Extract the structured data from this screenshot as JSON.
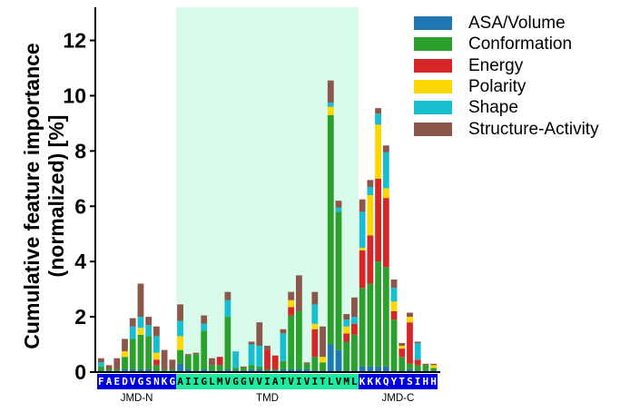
{
  "chart_data": {
    "type": "bar",
    "stacked": true,
    "ylabel": "Cumulative feature importance\n(normalized) [%]",
    "ylim": [
      0,
      13.2
    ],
    "yticks": [
      0,
      2,
      4,
      6,
      8,
      10,
      12
    ],
    "legend_position": "top-right, outside plot",
    "tmd_highlight_color": "#d9fbeb",
    "categories": [
      "F",
      "A",
      "E",
      "D",
      "V",
      "G",
      "S",
      "N",
      "K",
      "G",
      "A",
      "I",
      "I",
      "G",
      "L",
      "M",
      "V",
      "G",
      "G",
      "V",
      "V",
      "I",
      "A",
      "T",
      "V",
      "I",
      "V",
      "I",
      "T",
      "L",
      "V",
      "M",
      "L",
      "K",
      "K",
      "K",
      "Q",
      "Y",
      "T",
      "S",
      "I",
      "H",
      "H"
    ],
    "regions": [
      {
        "label": "JMD-N",
        "start": 0,
        "end": 9,
        "letters": "FAEDVGSNKG",
        "bg": "#0000dd",
        "fg": "#ffffff"
      },
      {
        "label": "TMD",
        "start": 10,
        "end": 32,
        "letters": "AIIGLMVGGVVIATVIVITLVML",
        "bg": "#1de9a0",
        "fg": "#000000"
      },
      {
        "label": "JMD-C",
        "start": 33,
        "end": 42,
        "letters": "KKKQYTSIHH",
        "bg": "#0000dd",
        "fg": "#ffffff"
      }
    ],
    "series": [
      {
        "name": "ASA/Volume",
        "color": "#1f77b4",
        "values": [
          0.05,
          0.05,
          0.05,
          0.1,
          0.1,
          0.1,
          0.1,
          0.05,
          0.05,
          0.05,
          0.3,
          0.1,
          0.05,
          0.1,
          0.05,
          0.05,
          0.1,
          0.05,
          0.05,
          0.1,
          0.1,
          0.05,
          0.05,
          0.1,
          0.1,
          0.1,
          0.1,
          0.05,
          0.05,
          1.0,
          0.8,
          0.05,
          0.05,
          0.2,
          0.2,
          0.2,
          0.2,
          0.05,
          0.05,
          0.1,
          0.05,
          0.05,
          0.05
        ]
      },
      {
        "name": "Conformation",
        "color": "#2ca02c",
        "values": [
          0.15,
          0.05,
          0.05,
          0.45,
          1.1,
          1.25,
          1.2,
          0.2,
          0.05,
          0.05,
          0.5,
          0.5,
          0.6,
          1.4,
          0.2,
          0.2,
          1.9,
          0.1,
          0.1,
          0.15,
          0.1,
          0.05,
          0.05,
          0.3,
          1.95,
          2.1,
          0.2,
          0.5,
          0.3,
          8.3,
          5.0,
          1.05,
          1.3,
          2.85,
          3.0,
          3.8,
          3.6,
          1.85,
          0.5,
          0.2,
          0.2,
          0.2,
          0.1
        ]
      },
      {
        "name": "Energy",
        "color": "#d62728",
        "values": [
          0,
          0,
          0,
          0,
          0,
          0,
          0,
          0.2,
          0,
          0,
          0,
          0,
          0,
          0,
          0,
          0.3,
          0,
          0,
          0,
          0,
          0,
          0.7,
          0.5,
          0,
          0.3,
          0,
          0,
          1.0,
          0,
          0,
          0,
          0.3,
          0.4,
          1.35,
          1.75,
          3.0,
          2.5,
          0.3,
          0.3,
          1.5,
          0.2,
          0,
          0
        ]
      },
      {
        "name": "Polarity",
        "color": "#ffd700",
        "values": [
          0,
          0,
          0,
          0.2,
          0,
          0.25,
          0,
          0.25,
          0,
          0,
          0.5,
          0,
          0,
          0,
          0,
          0,
          0,
          0,
          0,
          0,
          0,
          0,
          0,
          0,
          0.25,
          0,
          0,
          0.2,
          0.2,
          0.3,
          0,
          0.25,
          0,
          0.1,
          1.45,
          1.95,
          0.35,
          0.35,
          0.1,
          0.2,
          0,
          0,
          0.1
        ]
      },
      {
        "name": "Shape",
        "color": "#17becf",
        "values": [
          0.15,
          0,
          0,
          0,
          0.45,
          0.4,
          0.4,
          0.6,
          0,
          0,
          0.55,
          0,
          0,
          0.25,
          0,
          0,
          0.6,
          0.6,
          0,
          0.75,
          0.75,
          0,
          0,
          1.0,
          0,
          0,
          0,
          0.7,
          0,
          0.15,
          0.15,
          0.25,
          0.25,
          1.3,
          0.3,
          0.4,
          1.3,
          0.5,
          0,
          0,
          0.6,
          0,
          0
        ]
      },
      {
        "name": "Structure-Activity",
        "color": "#8c564b",
        "values": [
          0.15,
          0.15,
          0.4,
          0.45,
          0.3,
          1.2,
          0.3,
          0.35,
          0.7,
          0.35,
          0.6,
          0.05,
          0.05,
          0.3,
          0.25,
          0,
          0.3,
          0.0,
          0.05,
          0.1,
          0.85,
          0.15,
          0,
          0.15,
          0.3,
          1.3,
          0.05,
          0.45,
          1.1,
          0.8,
          0.25,
          0.2,
          0.7,
          0.45,
          0.25,
          0.2,
          0.25,
          0.3,
          0.1,
          0.15,
          0.05,
          0.05,
          0.05
        ]
      }
    ]
  }
}
